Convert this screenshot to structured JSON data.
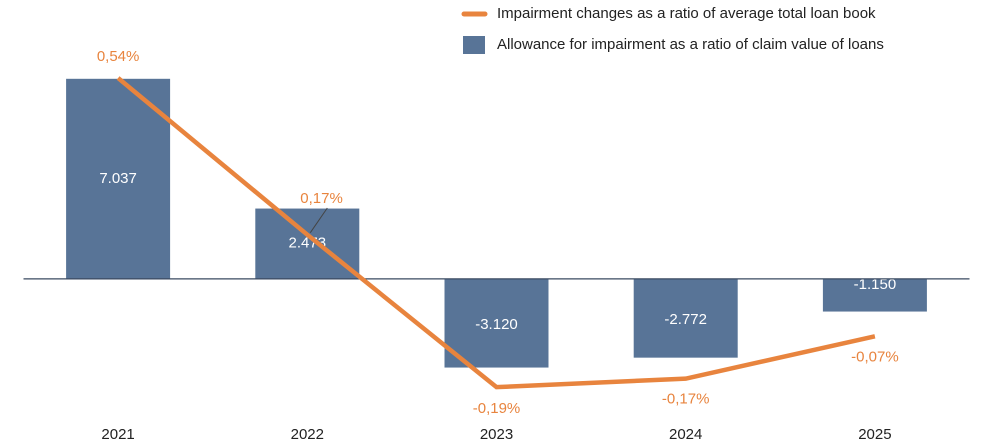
{
  "chart_data": {
    "type": "bar",
    "categories": [
      "2021",
      "2022",
      "2023",
      "2024",
      "2025"
    ],
    "series": [
      {
        "name": "Allowance for impairment as a ratio of claim value of loans",
        "type": "bar",
        "color": "#587497",
        "values": [
          7037,
          2473,
          -3120,
          -2772,
          -1150
        ],
        "value_labels": [
          "7.037",
          "2.473",
          "-3.120",
          "-2.772",
          "-1.150"
        ]
      },
      {
        "name": "Impairment changes as a ratio of average total loan book",
        "type": "line",
        "color": "#e8843e",
        "axis": "y2",
        "values": [
          0.54,
          0.17,
          -0.19,
          -0.17,
          -0.07
        ],
        "value_labels": [
          "0,54%",
          "0,17%",
          "-0,19%",
          "-0,17%",
          "-0,07%"
        ]
      }
    ],
    "ylim": [
      -5000,
      9000
    ],
    "y2lim": [
      -0.27,
      0.67
    ],
    "legend": "upper right"
  }
}
